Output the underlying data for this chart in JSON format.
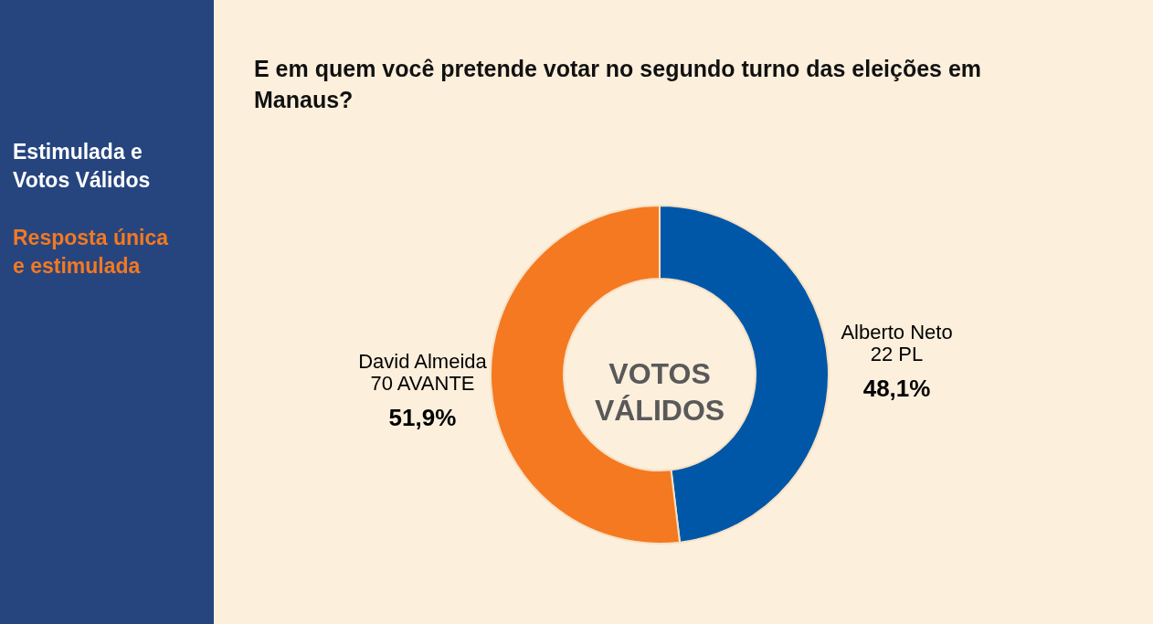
{
  "chart_data": {
    "type": "donut",
    "title": "E em quem você pretende votar no segundo turno das eleições em Manaus?",
    "categories": [
      "Alberto Neto\n22 PL",
      "David Almeida\n70 AVANTE"
    ],
    "values": [
      48.1,
      51.9
    ],
    "colors": [
      "#0057a8",
      "#f47920"
    ],
    "value_labels": [
      "48,1%",
      "51,9%"
    ],
    "annotations": [
      "Estimulada e Votos Válidos",
      "Resposta única e estimulada",
      "VOTOS VÁLIDOS"
    ]
  }
}
